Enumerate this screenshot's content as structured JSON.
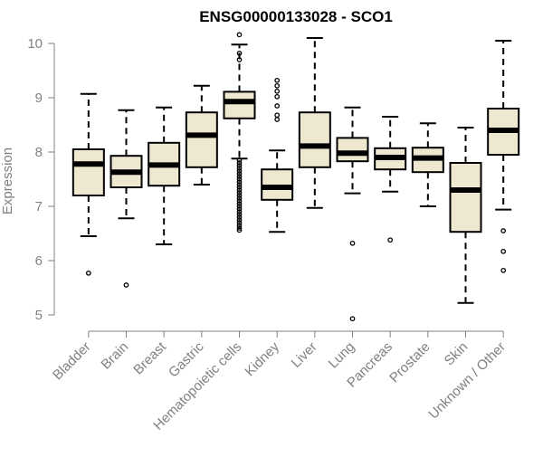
{
  "chart_data": {
    "type": "box",
    "title": "ENSG00000133028 - SCO1",
    "ylabel": "Expression",
    "xlabel": "",
    "ylim": [
      4.85,
      10.2
    ],
    "yticks": [
      5,
      6,
      7,
      8,
      9,
      10
    ],
    "grid": false,
    "colors": {
      "box_fill": "#efe8d1",
      "stroke": "#000000",
      "axis": "#808080"
    },
    "categories": [
      "Bladder",
      "Brain",
      "Breast",
      "Gastric",
      "Hematopoietic cells",
      "Kidney",
      "Liver",
      "Lung",
      "Pancreas",
      "Prostate",
      "Skin",
      "Unknown / Other"
    ],
    "boxes": [
      {
        "q1": 7.2,
        "median": 7.78,
        "q3": 8.05,
        "whisker_low": 6.45,
        "whisker_high": 9.07,
        "outliers": [
          5.77
        ]
      },
      {
        "q1": 7.35,
        "median": 7.63,
        "q3": 7.93,
        "whisker_low": 6.78,
        "whisker_high": 8.77,
        "outliers": [
          5.55
        ]
      },
      {
        "q1": 7.38,
        "median": 7.76,
        "q3": 8.17,
        "whisker_low": 6.3,
        "whisker_high": 8.82,
        "outliers": []
      },
      {
        "q1": 7.72,
        "median": 8.31,
        "q3": 8.73,
        "whisker_low": 7.4,
        "whisker_high": 9.22,
        "outliers": []
      },
      {
        "q1": 8.62,
        "median": 8.93,
        "q3": 9.11,
        "whisker_low": 7.88,
        "whisker_high": 9.98,
        "outliers": [
          10.16,
          9.82,
          9.7,
          7.85,
          7.8,
          7.75,
          7.7,
          7.65,
          7.6,
          7.55,
          7.5,
          7.45,
          7.4,
          7.35,
          7.3,
          7.25,
          7.2,
          7.15,
          7.1,
          7.05,
          7.0,
          6.95,
          6.9,
          6.85,
          6.8,
          6.75,
          6.7,
          6.65,
          6.6,
          6.56
        ]
      },
      {
        "q1": 7.12,
        "median": 7.35,
        "q3": 7.68,
        "whisker_low": 6.53,
        "whisker_high": 8.03,
        "outliers": [
          9.32,
          9.22,
          9.12,
          9.02,
          8.85,
          8.68,
          8.6
        ]
      },
      {
        "q1": 7.72,
        "median": 8.11,
        "q3": 8.73,
        "whisker_low": 6.97,
        "whisker_high": 10.1,
        "outliers": []
      },
      {
        "q1": 7.83,
        "median": 7.98,
        "q3": 8.26,
        "whisker_low": 7.24,
        "whisker_high": 8.82,
        "outliers": [
          6.32,
          4.93
        ]
      },
      {
        "q1": 7.68,
        "median": 7.9,
        "q3": 8.07,
        "whisker_low": 7.27,
        "whisker_high": 8.65,
        "outliers": [
          6.38
        ]
      },
      {
        "q1": 7.63,
        "median": 7.89,
        "q3": 8.08,
        "whisker_low": 7.0,
        "whisker_high": 8.53,
        "outliers": []
      },
      {
        "q1": 6.53,
        "median": 7.3,
        "q3": 7.8,
        "whisker_low": 5.22,
        "whisker_high": 8.45,
        "outliers": []
      },
      {
        "q1": 7.95,
        "median": 8.4,
        "q3": 8.8,
        "whisker_low": 6.94,
        "whisker_high": 10.05,
        "outliers": [
          6.55,
          6.17,
          5.82
        ]
      }
    ]
  }
}
